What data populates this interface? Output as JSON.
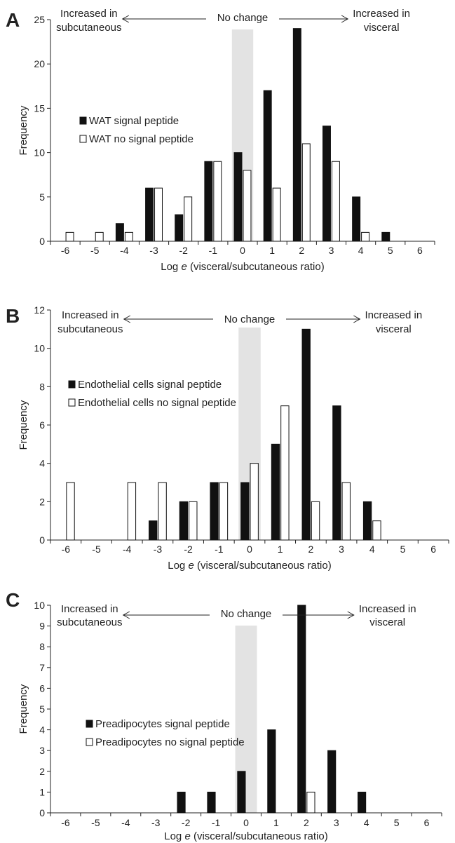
{
  "colors": {
    "signal": "#111111",
    "no_signal": "#ffffff",
    "no_change_band": "#e3e3e3"
  },
  "chart_data": [
    {
      "panel_letter": "A",
      "type": "bar",
      "categories": [
        "-6",
        "-5",
        "-4",
        "-3",
        "-2",
        "-1",
        "0",
        "1",
        "2",
        "3",
        "4",
        "5",
        "6"
      ],
      "series": [
        {
          "name": "WAT signal peptide",
          "values": [
            0,
            0,
            2,
            6,
            3,
            9,
            10,
            17,
            24,
            13,
            5,
            1,
            0
          ]
        },
        {
          "name": "WAT no signal peptide",
          "values": [
            1,
            1,
            1,
            6,
            5,
            9,
            8,
            6,
            11,
            9,
            1,
            0,
            0
          ]
        }
      ],
      "ylabel": "Frequency",
      "xlabel": "Log e (visceral/subcutaneous ratio)",
      "xlabel_main": "Log ",
      "xlabel_italic": "e",
      "xlabel_rest": " (visceral/subcutaneous ratio)",
      "ylim": [
        0,
        25
      ],
      "yticks": [
        0,
        5,
        10,
        15,
        20,
        25
      ],
      "annotations": {
        "left_line1": "Increased in",
        "left_line2": "subcutaneous",
        "center": "No change",
        "right_line1": "Increased in",
        "right_line2": "visceral"
      },
      "legend_position": "left"
    },
    {
      "panel_letter": "B",
      "type": "bar",
      "categories": [
        "-6",
        "-5",
        "-4",
        "-3",
        "-2",
        "-1",
        "0",
        "1",
        "2",
        "3",
        "4",
        "5",
        "6"
      ],
      "series": [
        {
          "name": "Endothelial cells signal peptide",
          "values": [
            0,
            0,
            0,
            1,
            2,
            3,
            3,
            5,
            11,
            7,
            2,
            0,
            0
          ]
        },
        {
          "name": "Endothelial cells no signal peptide",
          "values": [
            3,
            0,
            3,
            3,
            2,
            3,
            4,
            7,
            2,
            3,
            1,
            0,
            0
          ]
        }
      ],
      "ylabel": "Frequency",
      "xlabel": "Log e (visceral/subcutaneous ratio)",
      "xlabel_main": "Log ",
      "xlabel_italic": "e",
      "xlabel_rest": " (visceral/subcutaneous ratio)",
      "ylim": [
        0,
        12
      ],
      "yticks": [
        0,
        2,
        4,
        6,
        8,
        10,
        12
      ],
      "annotations": {
        "left_line1": "Increased in",
        "left_line2": "subcutaneous",
        "center": "No change",
        "right_line1": "Increased in",
        "right_line2": "visceral"
      },
      "legend_position": "left"
    },
    {
      "panel_letter": "C",
      "type": "bar",
      "categories": [
        "-6",
        "-5",
        "-4",
        "-3",
        "-2",
        "-1",
        "0",
        "1",
        "2",
        "3",
        "4",
        "5",
        "6"
      ],
      "series": [
        {
          "name": "Preadipocytes signal peptide",
          "values": [
            0,
            0,
            0,
            0,
            1,
            1,
            2,
            4,
            10,
            3,
            1,
            0,
            0
          ]
        },
        {
          "name": "Preadipocytes no signal peptide",
          "values": [
            0,
            0,
            0,
            0,
            0,
            0,
            0,
            0,
            1,
            0,
            0,
            0,
            0
          ]
        }
      ],
      "ylabel": "Frequency",
      "xlabel": "Log e (visceral/subcutaneous ratio)",
      "xlabel_main": "Log ",
      "xlabel_italic": "e",
      "xlabel_rest": " (visceral/subcutaneous ratio)",
      "ylim": [
        0,
        10
      ],
      "yticks": [
        0,
        1,
        2,
        3,
        4,
        5,
        6,
        7,
        8,
        9,
        10
      ],
      "annotations": {
        "left_line1": "Increased in",
        "left_line2": "subcutaneous",
        "center": "No change",
        "right_line1": "Increased in",
        "right_line2": "visceral"
      },
      "legend_position": "left"
    }
  ]
}
